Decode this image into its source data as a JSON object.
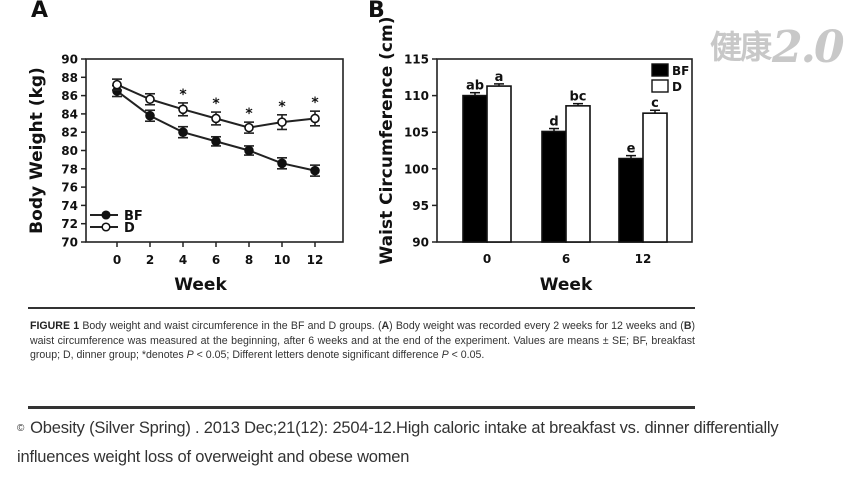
{
  "watermark": {
    "cjk": "健康",
    "text": "2.0"
  },
  "panels": {
    "a_letter": "A",
    "b_letter": "B"
  },
  "chart_data": [
    {
      "type": "line",
      "panel": "A",
      "title": "",
      "xlabel": "Week",
      "ylabel": "Body Weight (kg)",
      "x": [
        0,
        2,
        4,
        6,
        8,
        10,
        12
      ],
      "x_ticks": [
        "0",
        "2",
        "4",
        "6",
        "8",
        "10",
        "12"
      ],
      "ylim": [
        70,
        90
      ],
      "y_ticks": [
        "70",
        "72",
        "74",
        "76",
        "78",
        "80",
        "82",
        "84",
        "86",
        "88",
        "90"
      ],
      "grid": false,
      "legend_position": "bottom-left",
      "series": [
        {
          "name": "BF",
          "marker": "filled-circle",
          "values": [
            86.5,
            83.8,
            82.0,
            81.0,
            80.0,
            78.6,
            77.8
          ],
          "se": [
            0.6,
            0.6,
            0.6,
            0.5,
            0.5,
            0.6,
            0.6
          ]
        },
        {
          "name": "D",
          "marker": "open-circle",
          "values": [
            87.2,
            85.6,
            84.5,
            83.5,
            82.5,
            83.1,
            83.5
          ],
          "se": [
            0.6,
            0.6,
            0.7,
            0.7,
            0.6,
            0.8,
            0.8
          ]
        }
      ],
      "annotations": [
        {
          "x": 4,
          "text": "*"
        },
        {
          "x": 6,
          "text": "*"
        },
        {
          "x": 8,
          "text": "*"
        },
        {
          "x": 10,
          "text": "*"
        },
        {
          "x": 12,
          "text": "*"
        }
      ]
    },
    {
      "type": "bar",
      "panel": "B",
      "title": "",
      "xlabel": "Week",
      "ylabel": "Waist Circumference (cm)",
      "categories": [
        "0",
        "6",
        "12"
      ],
      "ylim": [
        90,
        115
      ],
      "y_ticks": [
        "90",
        "95",
        "100",
        "105",
        "110",
        "115"
      ],
      "grid": false,
      "legend_position": "top-right",
      "series": [
        {
          "name": "BF",
          "color": "#000000",
          "values": [
            110.0,
            105.1,
            101.4
          ],
          "se": [
            0.4,
            0.4,
            0.4
          ],
          "labels": [
            "ab",
            "d",
            "e"
          ]
        },
        {
          "name": "D",
          "color": "#ffffff",
          "values": [
            111.3,
            108.6,
            107.6
          ],
          "se": [
            0.3,
            0.3,
            0.4
          ],
          "labels": [
            "a",
            "bc",
            "c"
          ]
        }
      ]
    }
  ],
  "caption": {
    "label": "FIGURE 1",
    "text_1": " Body weight and waist circumference in the BF and D groups. (",
    "a": "A",
    "text_2": ") Body weight was recorded every 2 weeks for 12 weeks and (",
    "b": "B",
    "text_3": ") waist circumference was measured at the beginning, after 6 weeks and at the end of the experiment. Values are means ± SE; BF, breakfast group; D, dinner group; *denotes ",
    "p1": "P",
    "text_4": " < 0.05; Different letters denote significant difference ",
    "p2": "P",
    "text_5": " < 0.05."
  },
  "citation": {
    "symbol": "©",
    "text": "Obesity (Silver Spring) . 2013 Dec;21(12): 2504-12.High caloric intake at breakfast vs. dinner differentially influences weight loss of overweight and obese women"
  }
}
